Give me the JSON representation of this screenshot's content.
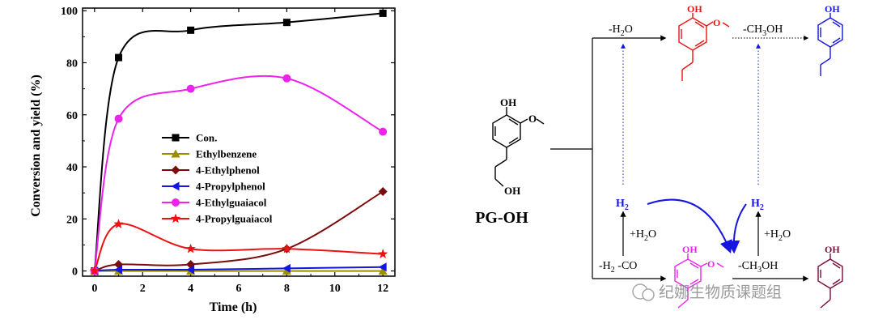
{
  "chart_data": {
    "type": "line",
    "xlabel": "Time (h)",
    "ylabel": "Conversion and yield (%)",
    "xlim": [
      -0.5,
      12.5
    ],
    "ylim": [
      -2,
      101
    ],
    "xticks": [
      "0",
      "2",
      "4",
      "6",
      "8",
      "10",
      "12"
    ],
    "yticks": [
      "0",
      "20",
      "40",
      "60",
      "80",
      "100"
    ],
    "x": [
      0,
      1,
      4,
      8,
      12
    ],
    "grid": false,
    "legend_position": "center",
    "series": [
      {
        "name": "Con.",
        "values": [
          0,
          82,
          92.5,
          95.5,
          99
        ],
        "color": "#000000",
        "marker": "square"
      },
      {
        "name": "Ethylbenzene",
        "values": [
          0,
          0,
          0,
          0,
          0
        ],
        "color": "#9b8f00",
        "marker": "triangle-up"
      },
      {
        "name": "4-Ethylphenol",
        "values": [
          0,
          2.5,
          2.5,
          8.5,
          30.5
        ],
        "color": "#7a0c0c",
        "marker": "diamond"
      },
      {
        "name": "4-Propylphenol",
        "values": [
          0,
          0.5,
          0.5,
          1,
          1.5
        ],
        "color": "#1515e0",
        "marker": "triangle-left"
      },
      {
        "name": "4-Ethylguaiacol",
        "values": [
          0,
          58.5,
          70,
          74,
          53.5
        ],
        "color": "#ee22ee",
        "marker": "circle"
      },
      {
        "name": "4-Propylguaiacol",
        "values": [
          0,
          18,
          8.5,
          8.5,
          6.5
        ],
        "color": "#ee1111",
        "marker": "star"
      }
    ]
  },
  "scheme": {
    "reactant_label": "PG-OH",
    "oh": "OH",
    "h2": "H",
    "h2_sub": "2",
    "minus_h2o": "-H",
    "minus_h2o_sub": "2",
    "minus_h2o_end": "O",
    "minus_ch3oh_a": "-CH",
    "minus_ch3oh_sub": "3",
    "minus_ch3oh_b": "OH",
    "plus_h2o_a": "+H",
    "plus_h2o_sub": "2",
    "plus_h2o_b": "O",
    "minus_h2_co_a": "-H",
    "minus_h2_co_sub": "2",
    "minus_h2_co_b": " -CO"
  },
  "watermark": "纪娜生物质课题组",
  "colors": {
    "red": "#ee1111",
    "blue": "#1515e0",
    "magenta": "#ee22ee",
    "maroon": "#7a0c3c"
  }
}
